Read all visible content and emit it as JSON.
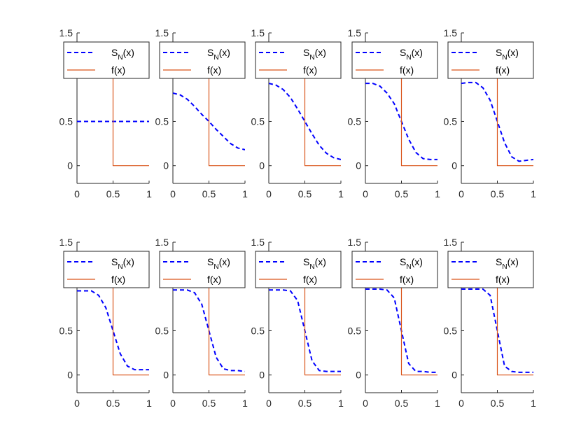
{
  "colors": {
    "approx": "#0000ff",
    "target": "#d95319",
    "axis": "#262626",
    "background": "#ffffff"
  },
  "chart_data": [
    {
      "type": "line",
      "title": "",
      "xlabel": "",
      "ylabel": "",
      "xlim": [
        0,
        1
      ],
      "ylim": [
        -0.2,
        1.5
      ],
      "xticks": [
        "0",
        "0.5",
        "1"
      ],
      "yticks": [
        "0",
        "0.5",
        "1.5"
      ],
      "legend": {
        "approx_label": {
          "main": "S",
          "sub": "N",
          "arg": "(x)"
        },
        "target_label": "f(x)",
        "placement": "top"
      },
      "series": [
        {
          "name": "S_N(x)",
          "style": "dashed",
          "x": [
            0,
            0.1,
            0.2,
            0.3,
            0.4,
            0.5,
            0.6,
            0.7,
            0.8,
            0.9,
            1
          ],
          "y": [
            0.5,
            0.5,
            0.5,
            0.5,
            0.5,
            0.5,
            0.5,
            0.5,
            0.5,
            0.5,
            0.5
          ]
        },
        {
          "name": "f(x)",
          "style": "solid",
          "x": [
            0,
            0.5,
            0.5,
            1
          ],
          "y": [
            1,
            1,
            0,
            0
          ]
        }
      ]
    },
    {
      "type": "line",
      "title": "",
      "xlabel": "",
      "ylabel": "",
      "xlim": [
        0,
        1
      ],
      "ylim": [
        -0.2,
        1.5
      ],
      "xticks": [
        "0",
        "0.5",
        "1"
      ],
      "yticks": [
        "0",
        "0.5",
        "1.5"
      ],
      "legend": {
        "approx_label": {
          "main": "S",
          "sub": "N",
          "arg": "(x)"
        },
        "target_label": "f(x)",
        "placement": "top"
      },
      "series": [
        {
          "name": "S_N(x)",
          "style": "dashed",
          "x": [
            0,
            0.1,
            0.2,
            0.3,
            0.4,
            0.5,
            0.6,
            0.7,
            0.8,
            0.9,
            1
          ],
          "y": [
            0.82,
            0.8,
            0.75,
            0.67,
            0.58,
            0.5,
            0.41,
            0.33,
            0.25,
            0.2,
            0.18
          ]
        },
        {
          "name": "f(x)",
          "style": "solid",
          "x": [
            0,
            0.5,
            0.5,
            1
          ],
          "y": [
            1,
            1,
            0,
            0
          ]
        }
      ]
    },
    {
      "type": "line",
      "title": "",
      "xlabel": "",
      "ylabel": "",
      "xlim": [
        0,
        1
      ],
      "ylim": [
        -0.2,
        1.5
      ],
      "xticks": [
        "0",
        "0.5",
        "1"
      ],
      "yticks": [
        "0",
        "0.5",
        "1.5"
      ],
      "legend": {
        "approx_label": {
          "main": "S",
          "sub": "N",
          "arg": "(x)"
        },
        "target_label": "f(x)",
        "placement": "top"
      },
      "series": [
        {
          "name": "S_N(x)",
          "style": "dashed",
          "x": [
            0,
            0.1,
            0.2,
            0.3,
            0.4,
            0.5,
            0.6,
            0.7,
            0.8,
            0.9,
            1
          ],
          "y": [
            0.93,
            0.91,
            0.86,
            0.77,
            0.64,
            0.5,
            0.36,
            0.23,
            0.14,
            0.09,
            0.07
          ]
        },
        {
          "name": "f(x)",
          "style": "solid",
          "x": [
            0,
            0.5,
            0.5,
            1
          ],
          "y": [
            1,
            1,
            0,
            0
          ]
        }
      ]
    },
    {
      "type": "line",
      "title": "",
      "xlabel": "",
      "ylabel": "",
      "xlim": [
        0,
        1
      ],
      "ylim": [
        -0.2,
        1.5
      ],
      "xticks": [
        "0",
        "0.5",
        "1"
      ],
      "yticks": [
        "0",
        "0.5",
        "1.5"
      ],
      "legend": {
        "approx_label": {
          "main": "S",
          "sub": "N",
          "arg": "(x)"
        },
        "target_label": "f(x)",
        "placement": "top"
      },
      "series": [
        {
          "name": "S_N(x)",
          "style": "dashed",
          "x": [
            0,
            0.1,
            0.2,
            0.3,
            0.4,
            0.5,
            0.6,
            0.7,
            0.8,
            0.9,
            1
          ],
          "y": [
            0.93,
            0.93,
            0.9,
            0.82,
            0.7,
            0.5,
            0.3,
            0.15,
            0.08,
            0.07,
            0.07
          ]
        },
        {
          "name": "f(x)",
          "style": "solid",
          "x": [
            0,
            0.5,
            0.5,
            1
          ],
          "y": [
            1,
            1,
            0,
            0
          ]
        }
      ]
    },
    {
      "type": "line",
      "title": "",
      "xlabel": "",
      "ylabel": "",
      "xlim": [
        0,
        1
      ],
      "ylim": [
        -0.2,
        1.5
      ],
      "xticks": [
        "0",
        "0.5",
        "1"
      ],
      "yticks": [
        "0",
        "0.5",
        "1.5"
      ],
      "legend": {
        "approx_label": {
          "main": "S",
          "sub": "N",
          "arg": "(x)"
        },
        "target_label": "f(x)",
        "placement": "top"
      },
      "series": [
        {
          "name": "S_N(x)",
          "style": "dashed",
          "x": [
            0,
            0.1,
            0.2,
            0.3,
            0.4,
            0.5,
            0.6,
            0.7,
            0.8,
            0.9,
            1
          ],
          "y": [
            0.93,
            0.94,
            0.94,
            0.88,
            0.74,
            0.5,
            0.26,
            0.1,
            0.05,
            0.06,
            0.07
          ]
        },
        {
          "name": "f(x)",
          "style": "solid",
          "x": [
            0,
            0.5,
            0.5,
            1
          ],
          "y": [
            1,
            1,
            0,
            0
          ]
        }
      ]
    },
    {
      "type": "line",
      "title": "",
      "xlabel": "",
      "ylabel": "",
      "xlim": [
        0,
        1
      ],
      "ylim": [
        -0.2,
        1.5
      ],
      "xticks": [
        "0",
        "0.5",
        "1"
      ],
      "yticks": [
        "0",
        "0.5",
        "1.5"
      ],
      "legend": {
        "approx_label": {
          "main": "S",
          "sub": "N",
          "arg": "(x)"
        },
        "target_label": "f(x)",
        "placement": "top"
      },
      "series": [
        {
          "name": "S_N(x)",
          "style": "dashed",
          "x": [
            0,
            0.1,
            0.2,
            0.3,
            0.4,
            0.5,
            0.6,
            0.7,
            0.8,
            0.9,
            1
          ],
          "y": [
            0.95,
            0.95,
            0.95,
            0.9,
            0.76,
            0.5,
            0.24,
            0.1,
            0.06,
            0.06,
            0.06
          ]
        },
        {
          "name": "f(x)",
          "style": "solid",
          "x": [
            0,
            0.5,
            0.5,
            1
          ],
          "y": [
            1,
            1,
            0,
            0
          ]
        }
      ]
    },
    {
      "type": "line",
      "title": "",
      "xlabel": "",
      "ylabel": "",
      "xlim": [
        0,
        1
      ],
      "ylim": [
        -0.2,
        1.5
      ],
      "xticks": [
        "0",
        "0.5",
        "1"
      ],
      "yticks": [
        "0",
        "0.5",
        "1.5"
      ],
      "legend": {
        "approx_label": {
          "main": "S",
          "sub": "N",
          "arg": "(x)"
        },
        "target_label": "f(x)",
        "placement": "top"
      },
      "series": [
        {
          "name": "S_N(x)",
          "style": "dashed",
          "x": [
            0,
            0.1,
            0.2,
            0.3,
            0.4,
            0.5,
            0.6,
            0.7,
            0.8,
            0.9,
            1
          ],
          "y": [
            0.96,
            0.96,
            0.96,
            0.93,
            0.8,
            0.5,
            0.2,
            0.07,
            0.05,
            0.05,
            0.04
          ]
        },
        {
          "name": "f(x)",
          "style": "solid",
          "x": [
            0,
            0.5,
            0.5,
            1
          ],
          "y": [
            1,
            1,
            0,
            0
          ]
        }
      ]
    },
    {
      "type": "line",
      "title": "",
      "xlabel": "",
      "ylabel": "",
      "xlim": [
        0,
        1
      ],
      "ylim": [
        -0.2,
        1.5
      ],
      "xticks": [
        "0",
        "0.5",
        "1"
      ],
      "yticks": [
        "0",
        "0.5",
        "1.5"
      ],
      "legend": {
        "approx_label": {
          "main": "S",
          "sub": "N",
          "arg": "(x)"
        },
        "target_label": "f(x)",
        "placement": "top"
      },
      "series": [
        {
          "name": "S_N(x)",
          "style": "dashed",
          "x": [
            0,
            0.1,
            0.2,
            0.3,
            0.4,
            0.5,
            0.6,
            0.7,
            0.8,
            0.9,
            1
          ],
          "y": [
            0.96,
            0.96,
            0.96,
            0.95,
            0.84,
            0.5,
            0.16,
            0.05,
            0.04,
            0.04,
            0.04
          ]
        },
        {
          "name": "f(x)",
          "style": "solid",
          "x": [
            0,
            0.5,
            0.5,
            1
          ],
          "y": [
            1,
            1,
            0,
            0
          ]
        }
      ]
    },
    {
      "type": "line",
      "title": "",
      "xlabel": "",
      "ylabel": "",
      "xlim": [
        0,
        1
      ],
      "ylim": [
        -0.2,
        1.5
      ],
      "xticks": [
        "0",
        "0.5",
        "1"
      ],
      "yticks": [
        "0",
        "0.5",
        "1.5"
      ],
      "legend": {
        "approx_label": {
          "main": "S",
          "sub": "N",
          "arg": "(x)"
        },
        "target_label": "f(x)",
        "placement": "top"
      },
      "series": [
        {
          "name": "S_N(x)",
          "style": "dashed",
          "x": [
            0,
            0.1,
            0.2,
            0.3,
            0.4,
            0.5,
            0.6,
            0.7,
            0.8,
            0.9,
            1
          ],
          "y": [
            0.97,
            0.97,
            0.97,
            0.96,
            0.87,
            0.5,
            0.13,
            0.04,
            0.04,
            0.03,
            0.03
          ]
        },
        {
          "name": "f(x)",
          "style": "solid",
          "x": [
            0,
            0.5,
            0.5,
            1
          ],
          "y": [
            1,
            1,
            0,
            0
          ]
        }
      ]
    },
    {
      "type": "line",
      "title": "",
      "xlabel": "",
      "ylabel": "",
      "xlim": [
        0,
        1
      ],
      "ylim": [
        -0.2,
        1.5
      ],
      "xticks": [
        "0",
        "0.5",
        "1"
      ],
      "yticks": [
        "0",
        "0.5",
        "1.5"
      ],
      "legend": {
        "approx_label": {
          "main": "S",
          "sub": "N",
          "arg": "(x)"
        },
        "target_label": "f(x)",
        "placement": "top"
      },
      "series": [
        {
          "name": "S_N(x)",
          "style": "dashed",
          "x": [
            0,
            0.1,
            0.2,
            0.3,
            0.4,
            0.5,
            0.6,
            0.7,
            0.8,
            0.9,
            1
          ],
          "y": [
            0.97,
            0.97,
            0.97,
            0.97,
            0.9,
            0.5,
            0.1,
            0.04,
            0.03,
            0.03,
            0.03
          ]
        },
        {
          "name": "f(x)",
          "style": "solid",
          "x": [
            0,
            0.5,
            0.5,
            1
          ],
          "y": [
            1,
            1,
            0,
            0
          ]
        }
      ]
    }
  ]
}
